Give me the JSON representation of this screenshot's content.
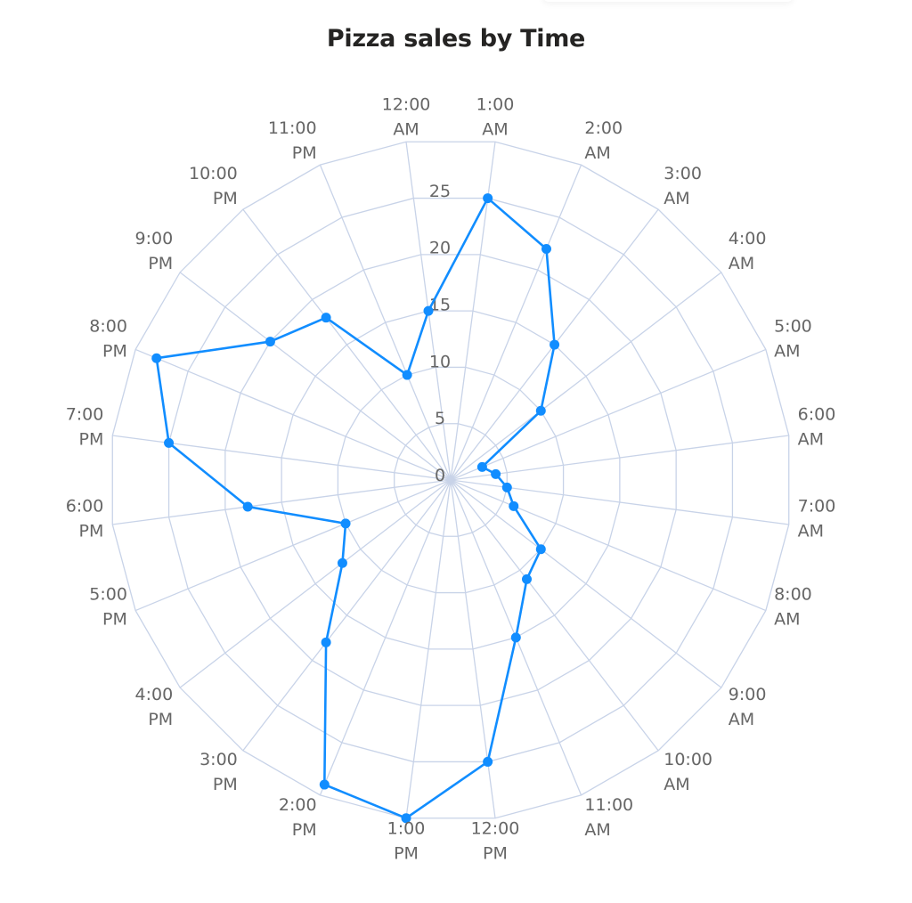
{
  "chart_data": {
    "type": "radar",
    "title": "Pizza sales by Time",
    "categories": [
      "12:00 AM",
      "1:00 AM",
      "2:00 AM",
      "3:00 AM",
      "4:00 AM",
      "5:00 AM",
      "6:00 AM",
      "7:00 AM",
      "8:00 AM",
      "9:00 AM",
      "10:00 AM",
      "11:00 AM",
      "12:00 PM",
      "1:00 PM",
      "2:00 PM",
      "3:00 PM",
      "4:00 PM",
      "5:00 PM",
      "6:00 PM",
      "7:00 PM",
      "8:00 PM",
      "9:00 PM",
      "10:00 PM",
      "11:00 PM"
    ],
    "series": [
      {
        "name": "Pizza sales",
        "color": "#118DFF",
        "values": [
          15,
          25,
          22,
          15,
          10,
          3,
          4,
          5,
          6,
          10,
          11,
          15,
          25,
          30,
          29,
          18,
          12,
          10,
          18,
          25,
          28,
          20,
          18,
          10
        ]
      }
    ],
    "radial_ticks": [
      "0",
      "5",
      "10",
      "15",
      "20",
      "25"
    ],
    "rlim": [
      0,
      30
    ],
    "grid": true,
    "grid_shape": "polygon",
    "legend": "none"
  },
  "colors": {
    "series": "#118DFF",
    "grid": "#C8D3E8",
    "label": "#666666",
    "title": "#252423"
  }
}
